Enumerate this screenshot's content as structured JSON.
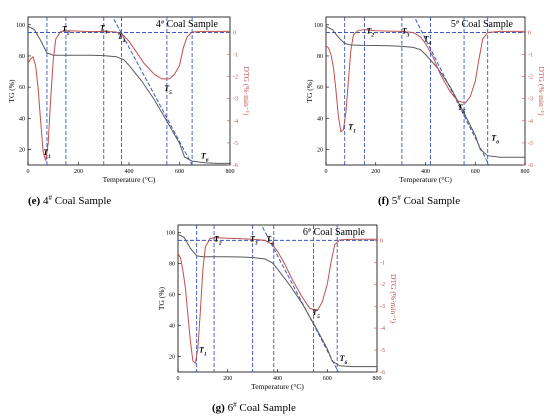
{
  "chart_data": [
    {
      "type": "line",
      "label": "(e)",
      "title": "4# Coal Sample",
      "caption": "4# Coal Sample",
      "xlabel": "Temperature (°C)",
      "ylabel_left": "TG (%)",
      "ylabel_right": "DTG (%·min⁻¹)",
      "xlim": [
        0,
        800
      ],
      "ylim_left": [
        10,
        105
      ],
      "ylim_right": [
        -6,
        0.7
      ],
      "left_ticks": [
        20,
        40,
        60,
        80,
        100
      ],
      "right_ticks": [
        0,
        -1,
        -2,
        -3,
        -4,
        -5,
        -6
      ],
      "x_ticks": [
        0,
        200,
        400,
        600,
        800
      ],
      "series": [
        {
          "axis": "left",
          "color": "#5a5a5a",
          "x": [
            0,
            25,
            50,
            75,
            100,
            150,
            200,
            250,
            300,
            350,
            380,
            400,
            450,
            500,
            550,
            600,
            620,
            650,
            700,
            750,
            800
          ],
          "y": [
            99,
            97,
            90,
            82,
            80.5,
            80.5,
            80.5,
            80.4,
            80.2,
            79.5,
            77.5,
            74,
            64,
            52,
            38,
            24,
            15,
            12.5,
            11.5,
            11,
            11
          ]
        },
        {
          "axis": "right",
          "color": "#c0504d",
          "x": [
            0,
            10,
            20,
            30,
            40,
            50,
            60,
            70,
            80,
            90,
            100,
            110,
            130,
            160,
            200,
            250,
            300,
            350,
            380,
            400,
            430,
            460,
            500,
            530,
            560,
            580,
            600,
            615,
            630,
            650,
            700,
            750,
            800
          ],
          "y": [
            -1.4,
            -1.2,
            -1.1,
            -1.5,
            -2.5,
            -4.0,
            -5.4,
            -5.8,
            -5.0,
            -3.0,
            -1.2,
            -0.3,
            0.05,
            0.08,
            0.06,
            0.04,
            0.05,
            0.02,
            -0.15,
            -0.4,
            -0.9,
            -1.4,
            -1.9,
            -2.1,
            -2.1,
            -1.9,
            -1.5,
            -0.7,
            -0.2,
            0.02,
            0.05,
            0.05,
            0.05
          ]
        }
      ],
      "guide_x": [
        75,
        150,
        300,
        370,
        550,
        650
      ],
      "markers": [
        {
          "label": "T",
          "sub": "1",
          "x": 75,
          "y": -5.55
        },
        {
          "label": "T",
          "sub": "2",
          "x": 150,
          "y": 0.05
        },
        {
          "label": "T",
          "sub": "3",
          "x": 300,
          "y": 0.1
        },
        {
          "label": "T",
          "sub": "4",
          "x": 370,
          "y": -0.3
        },
        {
          "label": "T",
          "sub": "5",
          "x": 555,
          "y": -2.65
        },
        {
          "label": "T",
          "sub": "6",
          "x": 700,
          "y": -5.7
        }
      ],
      "tangents": [
        [
          [
            0,
            0
          ],
          [
            800,
            0
          ]
        ],
        [
          [
            340,
            0.6
          ],
          [
            650,
            -6
          ]
        ]
      ]
    },
    {
      "type": "line",
      "label": "(f)",
      "title": "5# Coal Sample",
      "caption": "5# Coal Sample",
      "xlabel": "Temperature (°C)",
      "ylabel_left": "TG (%)",
      "ylabel_right": "DTG (%·min⁻¹)",
      "xlim": [
        0,
        800
      ],
      "ylim_left": [
        10,
        105
      ],
      "ylim_right": [
        -6,
        0.7
      ],
      "left_ticks": [
        20,
        40,
        60,
        80,
        100
      ],
      "right_ticks": [
        0,
        -1,
        -2,
        -3,
        -4,
        -5,
        -6
      ],
      "x_ticks": [
        0,
        200,
        400,
        600,
        800
      ],
      "series": [
        {
          "axis": "left",
          "color": "#5a5a5a",
          "x": [
            0,
            25,
            50,
            75,
            100,
            150,
            200,
            250,
            300,
            350,
            380,
            400,
            450,
            500,
            550,
            600,
            620,
            650,
            700,
            750,
            800
          ],
          "y": [
            99,
            97,
            92,
            88,
            87,
            86.8,
            86.7,
            86.5,
            86.2,
            85.5,
            84,
            81,
            72,
            60,
            45,
            29,
            20,
            16,
            15,
            15,
            15
          ]
        },
        {
          "axis": "right",
          "color": "#c0504d",
          "x": [
            0,
            10,
            20,
            30,
            40,
            50,
            60,
            70,
            80,
            90,
            100,
            110,
            130,
            160,
            200,
            250,
            300,
            350,
            380,
            400,
            430,
            460,
            500,
            530,
            560,
            580,
            600,
            615,
            630,
            650,
            700,
            750,
            800
          ],
          "y": [
            -0.6,
            -0.7,
            -1.0,
            -1.6,
            -2.6,
            -3.8,
            -4.5,
            -4.4,
            -3.6,
            -2.2,
            -0.8,
            -0.1,
            0.1,
            0.12,
            0.08,
            0.06,
            0.05,
            0.0,
            -0.2,
            -0.5,
            -1.1,
            -1.9,
            -2.7,
            -3.1,
            -3.2,
            -2.9,
            -2.2,
            -1.2,
            -0.3,
            0.0,
            0.05,
            0.05,
            0.05
          ]
        }
      ],
      "guide_x": [
        75,
        155,
        305,
        420,
        555,
        650
      ],
      "markers": [
        {
          "label": "T",
          "sub": "1",
          "x": 105,
          "y": -4.4
        },
        {
          "label": "T",
          "sub": "2",
          "x": 178,
          "y": -0.05
        },
        {
          "label": "T",
          "sub": "3",
          "x": 320,
          "y": -0.05
        },
        {
          "label": "T",
          "sub": "4",
          "x": 408,
          "y": -0.4
        },
        {
          "label": "T",
          "sub": "5",
          "x": 545,
          "y": -3.5
        },
        {
          "label": "T",
          "sub": "6",
          "x": 680,
          "y": -4.9
        }
      ],
      "tangents": [
        [
          [
            0,
            0
          ],
          [
            800,
            0
          ]
        ],
        [
          [
            360,
            0.6
          ],
          [
            655,
            -6
          ]
        ]
      ]
    },
    {
      "type": "line",
      "label": "(g)",
      "title": "6# Coal Sample",
      "caption": "6# Coal Sample",
      "xlabel": "Temperature (°C)",
      "ylabel_left": "TG (%)",
      "ylabel_right": "DTG (%·min⁻¹)",
      "xlim": [
        0,
        800
      ],
      "ylim_left": [
        10,
        105
      ],
      "ylim_right": [
        -6,
        0.7
      ],
      "left_ticks": [
        20,
        40,
        60,
        80,
        100
      ],
      "right_ticks": [
        0,
        -1,
        -2,
        -3,
        -4,
        -5,
        -6
      ],
      "x_ticks": [
        0,
        200,
        400,
        600,
        800
      ],
      "series": [
        {
          "axis": "left",
          "color": "#5a5a5a",
          "x": [
            0,
            25,
            50,
            75,
            100,
            150,
            200,
            250,
            300,
            350,
            380,
            400,
            450,
            500,
            550,
            600,
            620,
            650,
            700,
            750,
            800
          ],
          "y": [
            99,
            97,
            90,
            85,
            84.5,
            84.5,
            84.5,
            84.3,
            84,
            83,
            80.5,
            76.5,
            66,
            54,
            40,
            25,
            17,
            14,
            13.5,
            13.5,
            13.5
          ]
        },
        {
          "axis": "right",
          "color": "#c0504d",
          "x": [
            0,
            10,
            20,
            30,
            40,
            50,
            60,
            70,
            80,
            90,
            100,
            110,
            130,
            160,
            200,
            250,
            300,
            350,
            380,
            400,
            430,
            460,
            500,
            530,
            560,
            580,
            600,
            615,
            630,
            650,
            700,
            750,
            800
          ],
          "y": [
            -0.6,
            -0.8,
            -1.4,
            -2.2,
            -3.4,
            -4.6,
            -5.5,
            -5.6,
            -4.9,
            -3.2,
            -1.3,
            -0.3,
            0.1,
            0.12,
            0.1,
            0.08,
            0.05,
            0.0,
            -0.2,
            -0.5,
            -1.1,
            -1.8,
            -2.6,
            -3.1,
            -3.2,
            -2.8,
            -2.0,
            -1.0,
            -0.2,
            0.02,
            0.05,
            0.05,
            0.05
          ]
        }
      ],
      "guide_x": [
        75,
        145,
        300,
        385,
        545,
        640
      ],
      "markers": [
        {
          "label": "T",
          "sub": "1",
          "x": 100,
          "y": -5.1
        },
        {
          "label": "T",
          "sub": "2",
          "x": 160,
          "y": -0.05
        },
        {
          "label": "T",
          "sub": "3",
          "x": 305,
          "y": -0.05
        },
        {
          "label": "T",
          "sub": "4",
          "x": 370,
          "y": -0.05
        },
        {
          "label": "T",
          "sub": "5",
          "x": 555,
          "y": -3.4
        },
        {
          "label": "T",
          "sub": "6",
          "x": 665,
          "y": -5.5
        }
      ],
      "tangents": [
        [
          [
            0,
            0
          ],
          [
            800,
            0
          ]
        ],
        [
          [
            340,
            0.6
          ],
          [
            645,
            -6
          ]
        ]
      ]
    }
  ]
}
